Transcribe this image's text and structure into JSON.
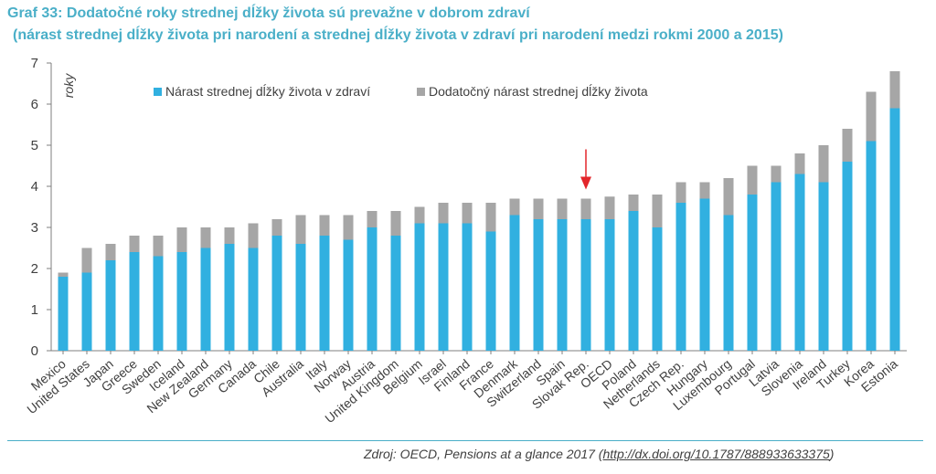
{
  "title": "Graf 33: Dodatočné roky strednej dĺžky života sú prevažne v dobrom zdraví",
  "subtitle": "(nárast strednej dĺžky života pri narodení a strednej dĺžky života v zdraví pri narodení medzi rokmi 2000 a 2015)",
  "source_text": "Zdroj: OECD, Pensions at a glance 2017 (",
  "source_link": "http://dx.doi.org/10.1787/888933633375",
  "source_close": ")",
  "colors": {
    "title": "#4AAFC8",
    "healthy": "#31B0E0",
    "additional": "#A6A6A6",
    "axis": "#7F7F7F",
    "text": "#404040",
    "arrow": "#E3262B",
    "rule": "#4AAFC8"
  },
  "chart_data": {
    "type": "bar",
    "stacked": true,
    "ylabel": "roky",
    "ylim": [
      0,
      7
    ],
    "yticks": [
      0,
      1,
      2,
      3,
      4,
      5,
      6,
      7
    ],
    "legend_position": "top",
    "highlight": "Slovak Rep.",
    "categories": [
      "Mexico",
      "United States",
      "Japan",
      "Greece",
      "Sweden",
      "Iceland",
      "New Zealand",
      "Germany",
      "Canada",
      "Chile",
      "Australia",
      "Italy",
      "Norway",
      "Austria",
      "United Kingdom",
      "Belgium",
      "Israel",
      "Finland",
      "France",
      "Denmark",
      "Switzerland",
      "Spain",
      "Slovak Rep.",
      "OECD",
      "Poland",
      "Netherlands",
      "Czech Rep.",
      "Hungary",
      "Luxembourg",
      "Portugal",
      "Latvia",
      "Slovenia",
      "Ireland",
      "Turkey",
      "Korea",
      "Estonia"
    ],
    "series": [
      {
        "name": "Nárast strednej dĺžky života v zdraví",
        "values": [
          1.8,
          1.9,
          2.2,
          2.4,
          2.3,
          2.4,
          2.5,
          2.6,
          2.5,
          2.8,
          2.6,
          2.8,
          2.7,
          3.0,
          2.8,
          3.1,
          3.1,
          3.1,
          2.9,
          3.3,
          3.2,
          3.2,
          3.2,
          3.2,
          3.4,
          3.0,
          3.6,
          3.7,
          3.3,
          3.8,
          4.1,
          4.3,
          4.1,
          4.6,
          5.1,
          5.9
        ]
      },
      {
        "name": "Dodatočný nárast strednej dĺžky života",
        "values": [
          0.1,
          0.6,
          0.4,
          0.4,
          0.5,
          0.6,
          0.5,
          0.4,
          0.6,
          0.4,
          0.7,
          0.5,
          0.6,
          0.4,
          0.6,
          0.4,
          0.5,
          0.5,
          0.7,
          0.4,
          0.5,
          0.5,
          0.5,
          0.55,
          0.4,
          0.8,
          0.5,
          0.4,
          0.9,
          0.7,
          0.4,
          0.5,
          0.9,
          0.8,
          1.2,
          0.9
        ]
      }
    ]
  }
}
